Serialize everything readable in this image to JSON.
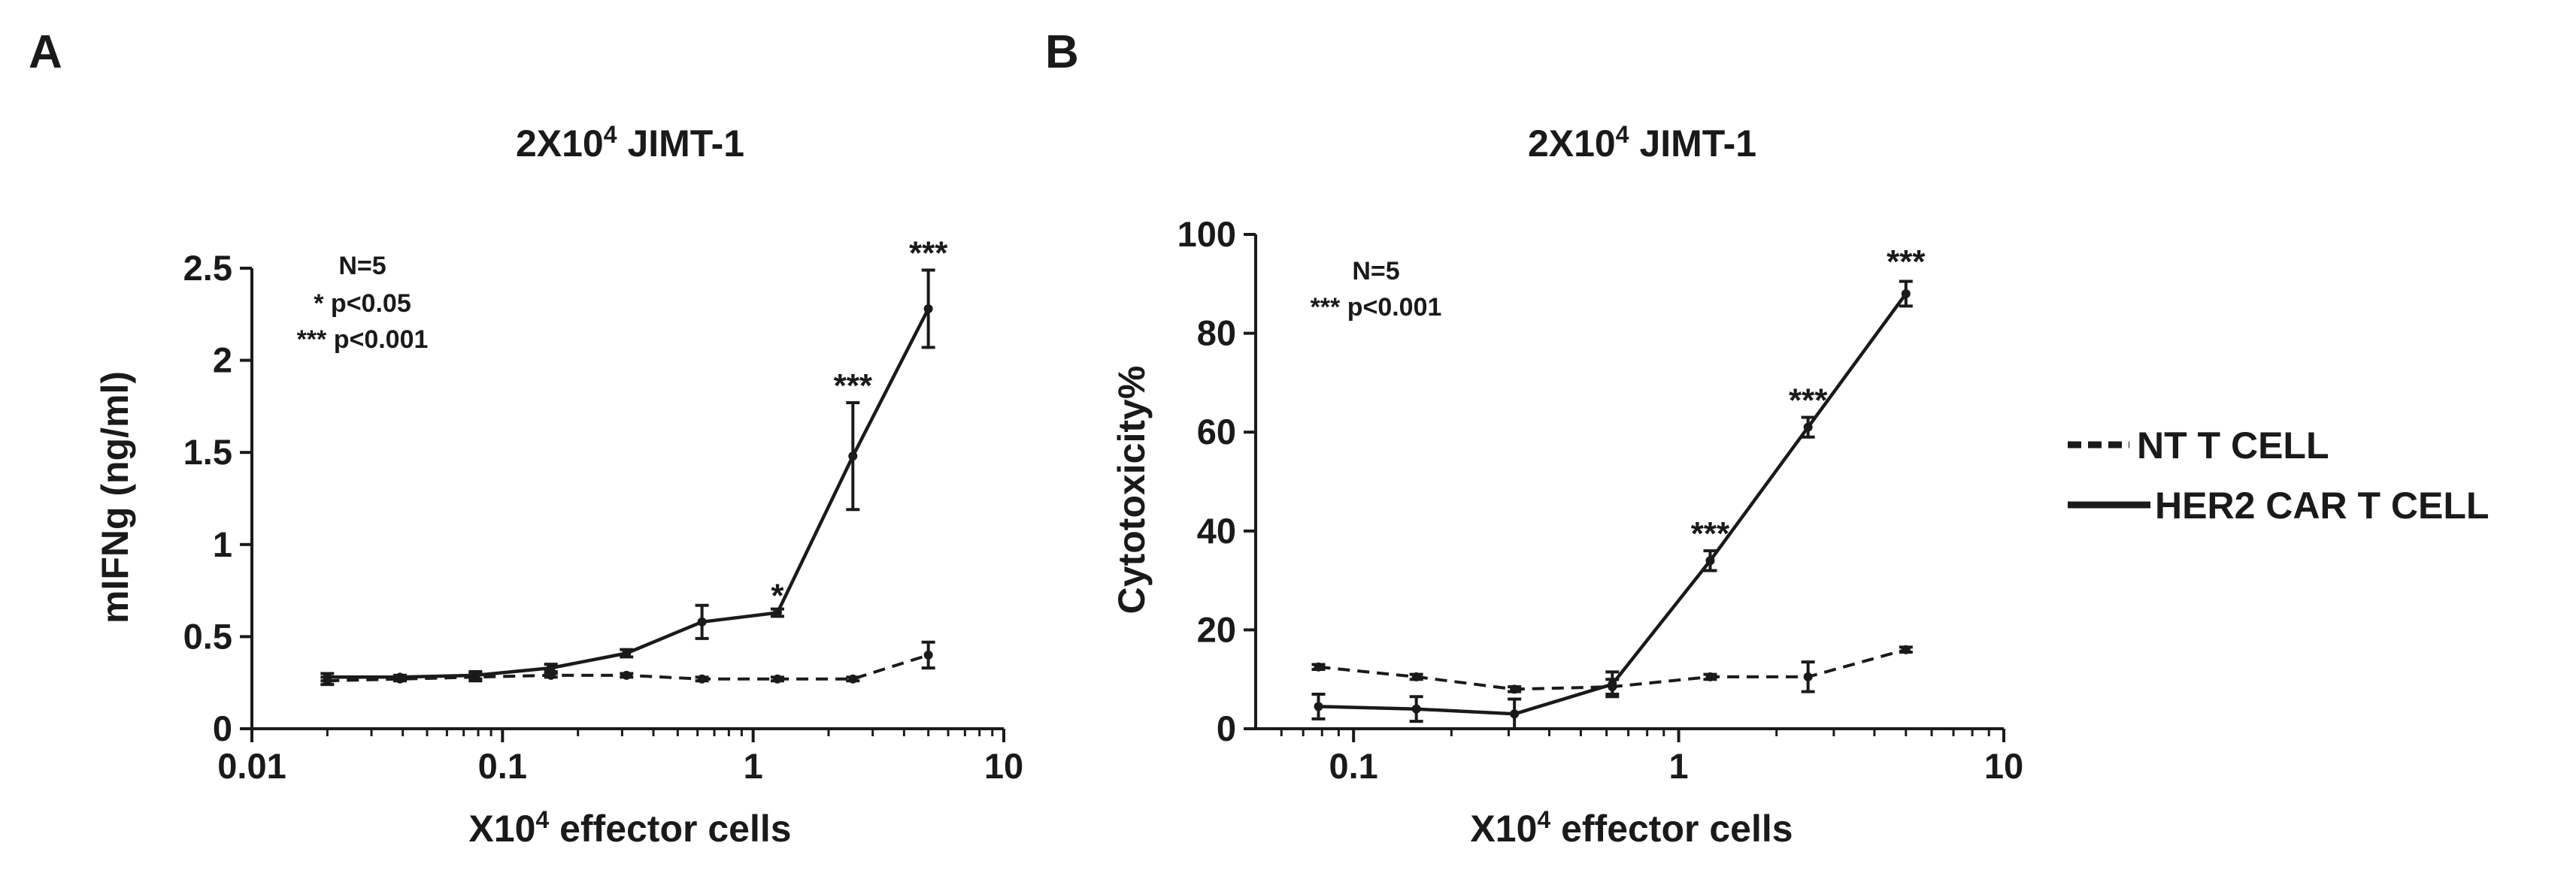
{
  "legend": {
    "items": [
      {
        "label": "NT T CELL",
        "style": "dashed"
      },
      {
        "label": "HER2 CAR T CELL",
        "style": "solid"
      }
    ]
  },
  "chart_data": [
    {
      "panel": "A",
      "type": "line",
      "title_base": "2X10",
      "title_sup": "4",
      "title_rest": " JIMT-1",
      "xlabel_base": "X10",
      "xlabel_sup": "4",
      "xlabel_rest": " effector cells",
      "ylabel": "mIFNg (ng/ml)",
      "xscale": "log",
      "xlim": [
        0.01,
        10
      ],
      "ylim": [
        0,
        2.5
      ],
      "xticks": [
        0.01,
        0.1,
        1,
        10
      ],
      "xtick_labels": [
        "0.01",
        "0.1",
        "1",
        "10"
      ],
      "yticks": [
        0,
        0.5,
        1,
        1.5,
        2,
        2.5
      ],
      "ytick_labels": [
        "0",
        "0.5",
        "1",
        "1.5",
        "2",
        "2.5"
      ],
      "stats_text": [
        "N=5",
        "* p<0.05",
        "*** p<0.001"
      ],
      "series": [
        {
          "name": "NT T CELL",
          "style": "dashed",
          "x": [
            0.02,
            0.039,
            0.078,
            0.156,
            0.3125,
            0.625,
            1.25,
            2.5,
            5
          ],
          "y": [
            0.26,
            0.27,
            0.28,
            0.29,
            0.29,
            0.27,
            0.27,
            0.27,
            0.4
          ],
          "err": [
            0.02,
            0.01,
            0.02,
            0.01,
            0.01,
            0.01,
            0.01,
            0.01,
            0.07
          ]
        },
        {
          "name": "HER2 CAR T CELL",
          "style": "solid",
          "x": [
            0.02,
            0.039,
            0.078,
            0.156,
            0.3125,
            0.625,
            1.25,
            2.5,
            5
          ],
          "y": [
            0.28,
            0.28,
            0.29,
            0.33,
            0.41,
            0.58,
            0.63,
            1.48,
            2.28
          ],
          "err": [
            0.02,
            0.01,
            0.02,
            0.02,
            0.02,
            0.09,
            0.02,
            0.29,
            0.21
          ]
        }
      ],
      "annotations": [
        {
          "text": "*",
          "x": 1.25,
          "y": 0.63
        },
        {
          "text": "***",
          "x": 2.5,
          "y": 1.77
        },
        {
          "text": "***",
          "x": 5,
          "y": 2.49
        }
      ]
    },
    {
      "panel": "B",
      "type": "line",
      "title_base": "2X10",
      "title_sup": "4",
      "title_rest": " JIMT-1",
      "xlabel_base": "X10",
      "xlabel_sup": "4",
      "xlabel_rest": " effector cells",
      "ylabel": "Cytotoxicity%",
      "xscale": "log",
      "xlim": [
        0.05,
        10
      ],
      "ylim": [
        0,
        100
      ],
      "xticks": [
        0.1,
        1,
        10
      ],
      "xtick_labels": [
        "0.1",
        "1",
        "10"
      ],
      "yticks": [
        0,
        20,
        40,
        60,
        80,
        100
      ],
      "ytick_labels": [
        "0",
        "20",
        "40",
        "60",
        "80",
        "100"
      ],
      "stats_text": [
        "N=5",
        "*** p<0.001"
      ],
      "series": [
        {
          "name": "NT T CELL",
          "style": "dashed",
          "x": [
            0.078,
            0.156,
            0.3125,
            0.625,
            1.25,
            2.5,
            5
          ],
          "y": [
            12.5,
            10.5,
            8,
            8.5,
            10.5,
            10.5,
            16
          ],
          "err": [
            0.5,
            0.5,
            0.5,
            1.5,
            0.5,
            3,
            0.5
          ]
        },
        {
          "name": "HER2 CAR T CELL",
          "style": "solid",
          "x": [
            0.078,
            0.156,
            0.3125,
            0.625,
            1.25,
            2.5,
            5
          ],
          "y": [
            4.5,
            4,
            3,
            9,
            34,
            61,
            88
          ],
          "err": [
            2.5,
            2.5,
            3,
            2.5,
            2,
            2,
            2.5
          ]
        }
      ],
      "annotations": [
        {
          "text": "***",
          "x": 1.25,
          "y": 36
        },
        {
          "text": "***",
          "x": 2.5,
          "y": 63
        },
        {
          "text": "***",
          "x": 5,
          "y": 91
        }
      ]
    }
  ]
}
